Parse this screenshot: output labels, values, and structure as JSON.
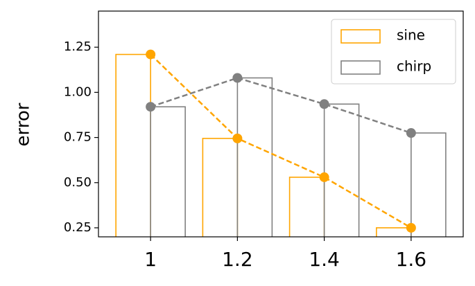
{
  "chart_data": {
    "type": "bar",
    "y_label": "error",
    "x": [
      1,
      1.2,
      1.4,
      1.6
    ],
    "series": [
      {
        "name": "sine",
        "color": "#ffa500",
        "values": [
          1.21,
          0.745,
          0.53,
          0.25
        ]
      },
      {
        "name": "chirp",
        "color": "#808080",
        "values": [
          0.92,
          1.08,
          0.935,
          0.775
        ]
      }
    ],
    "xlim": [
      0.88,
      1.72
    ],
    "ylim": [
      0.2,
      1.45
    ],
    "xticks": [
      1,
      1.2,
      1.4,
      1.6
    ],
    "yticks": [
      0.25,
      {
        "value": 0.5,
        "label": "0.50"
      },
      0.75,
      {
        "value": 1.0,
        "label": "1.00"
      },
      1.25
    ],
    "legend": "upper right"
  }
}
